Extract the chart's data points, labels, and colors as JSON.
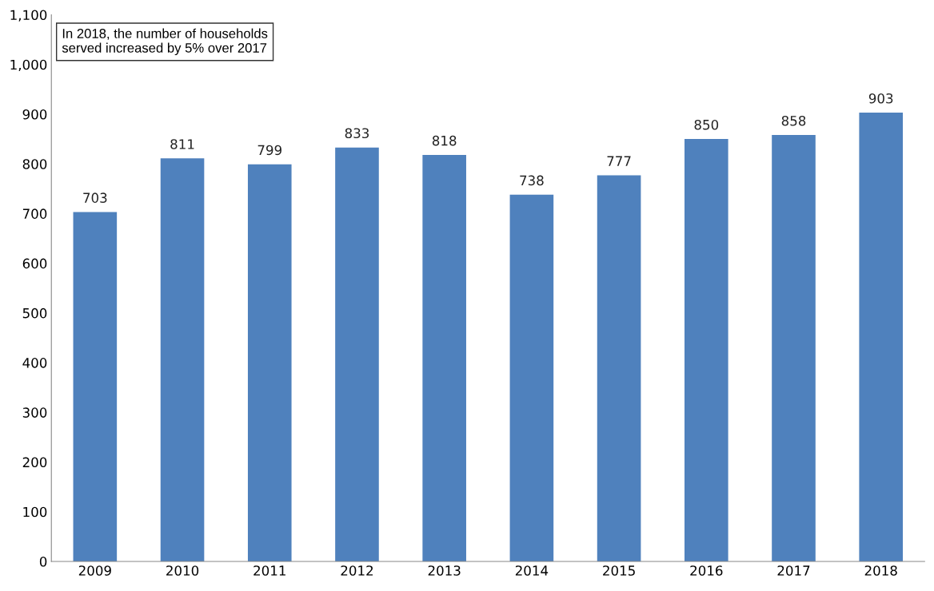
{
  "chart_data": {
    "type": "bar",
    "categories": [
      "2009",
      "2010",
      "2011",
      "2012",
      "2013",
      "2014",
      "2015",
      "2016",
      "2017",
      "2018"
    ],
    "values": [
      703,
      811,
      799,
      833,
      818,
      738,
      777,
      850,
      858,
      903
    ],
    "color": "#4f81bd",
    "ylim": [
      0,
      1100
    ],
    "yticks": [
      0,
      100,
      200,
      300,
      400,
      500,
      600,
      700,
      800,
      900,
      {
        "value": 1000,
        "label": "1,000"
      },
      {
        "value": 1100,
        "label": "1,100"
      }
    ],
    "data_labels": true,
    "grid": false,
    "legend": false,
    "annotations": [
      "In 2018, the number of households\nserved increased by 5% over 2017"
    ]
  }
}
